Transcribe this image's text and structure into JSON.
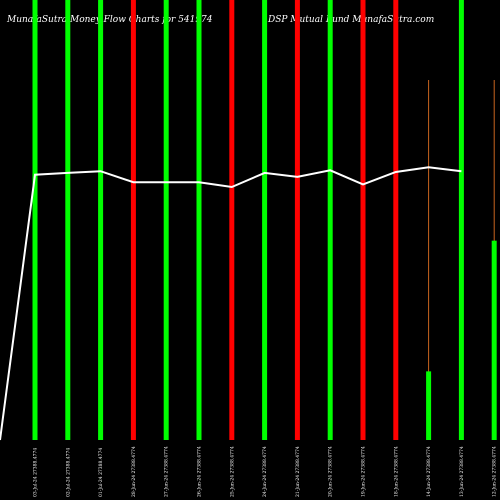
{
  "header": {
    "left_title": "MunafaSutra Money Flow  Charts for 541974",
    "right_title": "DSP Mutual Fund MunafaSutra.com"
  },
  "chart_data": {
    "type": "bar",
    "title": "MunafaSutra Money Flow  Charts for 541974",
    "subtitle": "DSP Mutual Fund MunafaSutra.com",
    "grid": false,
    "ylim": [
      0,
      100
    ],
    "categories": [
      "03-Jul-24 27388.4774",
      "02-Jul-24 27388.4774",
      "01-Jul-24 27388.4774",
      "28-Jun-24 27388.4774",
      "27-Jun-24 27388.4774",
      "26-Jun-24 27388.4774",
      "25-Jun-24 27388.4774",
      "24-Jun-24 27388.4774",
      "21-Jun-24 27388.4774",
      "20-Jun-24 27388.4774",
      "19-Jun-24 27388.4774",
      "18-Jun-24 27388.4774",
      "14-Jun-24 27388.4774",
      "13-Jun-24 27388.4774",
      "12-Jun-24 27388.4774"
    ],
    "bars": [
      {
        "value": 100,
        "color": "#00ff00",
        "style": "solid"
      },
      {
        "value": 100,
        "color": "#00ff00",
        "style": "solid"
      },
      {
        "value": 100,
        "color": "#00ff00",
        "style": "solid"
      },
      {
        "value": 100,
        "color": "#ff0000",
        "style": "solid"
      },
      {
        "value": 100,
        "color": "#00ff00",
        "style": "solid"
      },
      {
        "value": 100,
        "color": "#00ff00",
        "style": "solid"
      },
      {
        "value": 100,
        "color": "#ff0000",
        "style": "solid"
      },
      {
        "value": 100,
        "color": "#00ff00",
        "style": "solid"
      },
      {
        "value": 100,
        "color": "#ff0000",
        "style": "solid"
      },
      {
        "value": 100,
        "color": "#00ff00",
        "style": "solid"
      },
      {
        "value": 100,
        "color": "#ff0000",
        "style": "solid"
      },
      {
        "value": 100,
        "color": "#ff0000",
        "style": "solid"
      },
      {
        "value": 15.6,
        "color": "#00ff00",
        "style": "partial"
      },
      {
        "value": 100,
        "color": "#00ff00",
        "style": "solid"
      },
      {
        "value": 45.3,
        "color": "#00ff00",
        "style": "partial"
      }
    ],
    "line": {
      "color": "#ffffff",
      "start_value": 0,
      "values": [
        60.3,
        60.7,
        61.1,
        58.6,
        58.6,
        58.6,
        57.5,
        60.7,
        59.8,
        61.3,
        58.1,
        60.9,
        62.0,
        61.1
      ]
    }
  }
}
